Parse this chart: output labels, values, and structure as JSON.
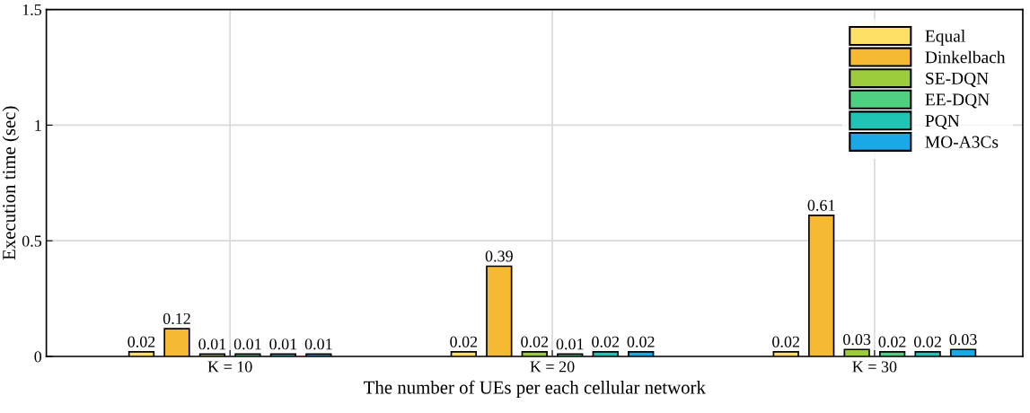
{
  "chart_data": {
    "type": "bar",
    "xlabel": "The number of UEs per each cellular network",
    "ylabel": "Execution time (sec)",
    "categories": [
      "K = 10",
      "K = 20",
      "K = 30"
    ],
    "series": [
      {
        "name": "Equal",
        "color": "#ffe066",
        "values": [
          0.02,
          0.02,
          0.02
        ]
      },
      {
        "name": "Dinkelbach",
        "color": "#f5b932",
        "values": [
          0.12,
          0.39,
          0.61
        ]
      },
      {
        "name": "SE-DQN",
        "color": "#9ccb3c",
        "values": [
          0.01,
          0.02,
          0.03
        ]
      },
      {
        "name": "EE-DQN",
        "color": "#4fcf80",
        "values": [
          0.01,
          0.01,
          0.02
        ]
      },
      {
        "name": "PQN",
        "color": "#1fc4b4",
        "values": [
          0.01,
          0.02,
          0.02
        ]
      },
      {
        "name": "MO-A3Cs",
        "color": "#1aa8e6",
        "values": [
          0.01,
          0.02,
          0.03
        ]
      }
    ],
    "ylim": [
      0,
      1.5
    ],
    "yticks": [
      0,
      0.5,
      1,
      1.5
    ],
    "grid": true,
    "legend": "top right",
    "data_labels": true
  }
}
